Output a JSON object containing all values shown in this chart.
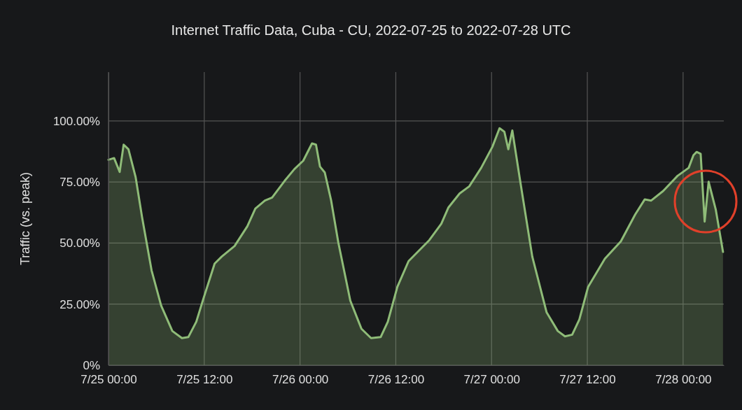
{
  "chart_data": {
    "type": "area",
    "title": "Internet Traffic Data, Cuba - CU, 2022-07-25 to 2022-07-28 UTC",
    "ylabel": "Traffic (vs. peak)",
    "x": [
      "2022-07-25T00:00",
      "2022-07-25T00:42",
      "2022-07-25T01:24",
      "2022-07-25T01:54",
      "2022-07-25T02:30",
      "2022-07-25T03:24",
      "2022-07-25T04:12",
      "2022-07-25T05:24",
      "2022-07-25T06:36",
      "2022-07-25T08:00",
      "2022-07-25T09:12",
      "2022-07-25T10:00",
      "2022-07-25T11:00",
      "2022-07-25T11:54",
      "2022-07-25T13:18",
      "2022-07-25T14:12",
      "2022-07-25T15:48",
      "2022-07-25T17:24",
      "2022-07-25T18:24",
      "2022-07-25T19:36",
      "2022-07-25T20:30",
      "2022-07-25T22:06",
      "2022-07-25T23:18",
      "2022-07-26T00:24",
      "2022-07-26T01:30",
      "2022-07-26T02:00",
      "2022-07-26T02:30",
      "2022-07-26T03:06",
      "2022-07-26T03:54",
      "2022-07-26T04:48",
      "2022-07-26T06:18",
      "2022-07-26T07:42",
      "2022-07-26T08:54",
      "2022-07-26T10:06",
      "2022-07-26T11:00",
      "2022-07-26T12:12",
      "2022-07-26T13:36",
      "2022-07-26T16:12",
      "2022-07-26T17:42",
      "2022-07-26T18:36",
      "2022-07-26T20:00",
      "2022-07-26T21:12",
      "2022-07-26T22:42",
      "2022-07-27T00:06",
      "2022-07-27T01:00",
      "2022-07-27T01:36",
      "2022-07-27T02:06",
      "2022-07-27T02:36",
      "2022-07-27T03:36",
      "2022-07-27T05:06",
      "2022-07-27T06:54",
      "2022-07-27T08:18",
      "2022-07-27T09:12",
      "2022-07-27T10:06",
      "2022-07-27T11:00",
      "2022-07-27T12:06",
      "2022-07-27T14:12",
      "2022-07-27T16:12",
      "2022-07-27T18:00",
      "2022-07-27T19:12",
      "2022-07-27T20:00",
      "2022-07-27T21:30",
      "2022-07-27T23:18",
      "2022-07-28T00:42",
      "2022-07-28T01:18",
      "2022-07-28T01:42",
      "2022-07-28T02:12",
      "2022-07-28T02:42",
      "2022-07-28T03:12",
      "2022-07-28T04:06",
      "2022-07-28T05:00"
    ],
    "series": [
      {
        "color": "#8fbc78",
        "values": [
          84.1,
          84.8,
          79.1,
          90.3,
          88.4,
          77.0,
          60.7,
          38.8,
          24.4,
          14.0,
          11.1,
          11.5,
          17.8,
          27.3,
          41.6,
          44.5,
          48.8,
          56.9,
          64.1,
          67.4,
          68.6,
          75.6,
          80.3,
          83.7,
          90.8,
          90.3,
          81.3,
          78.9,
          67.4,
          50.2,
          26.4,
          14.9,
          11.1,
          11.5,
          17.8,
          32.1,
          42.6,
          51.2,
          57.9,
          64.6,
          70.3,
          73.2,
          80.8,
          89.4,
          97.0,
          95.6,
          88.4,
          96.1,
          75.1,
          44.5,
          21.6,
          14.0,
          11.8,
          12.5,
          18.7,
          32.1,
          43.6,
          50.7,
          61.7,
          67.9,
          67.4,
          71.3,
          77.5,
          80.8,
          86.0,
          87.3,
          86.5,
          58.8,
          75.1,
          63.6,
          46.4
        ]
      }
    ],
    "xlim": [
      "2022-07-25T00:00",
      "2022-07-28T05:06"
    ],
    "xticks": [
      {
        "value": "2022-07-25T00:00",
        "label": "7/25 00:00"
      },
      {
        "value": "2022-07-25T12:00",
        "label": "7/25 12:00"
      },
      {
        "value": "2022-07-26T00:00",
        "label": "7/26 00:00"
      },
      {
        "value": "2022-07-26T12:00",
        "label": "7/26 12:00"
      },
      {
        "value": "2022-07-27T00:00",
        "label": "7/27 00:00"
      },
      {
        "value": "2022-07-27T12:00",
        "label": "7/27 12:00"
      },
      {
        "value": "2022-07-28T00:00",
        "label": "7/28 00:00"
      }
    ],
    "ylim": [
      0,
      120
    ],
    "yticks": [
      {
        "value": 0,
        "label": "0%"
      },
      {
        "value": 25,
        "label": "25.00%"
      },
      {
        "value": 50,
        "label": "50.00%"
      },
      {
        "value": 75,
        "label": "75.00%"
      },
      {
        "value": 100,
        "label": "100.00%"
      }
    ],
    "grid": true
  }
}
